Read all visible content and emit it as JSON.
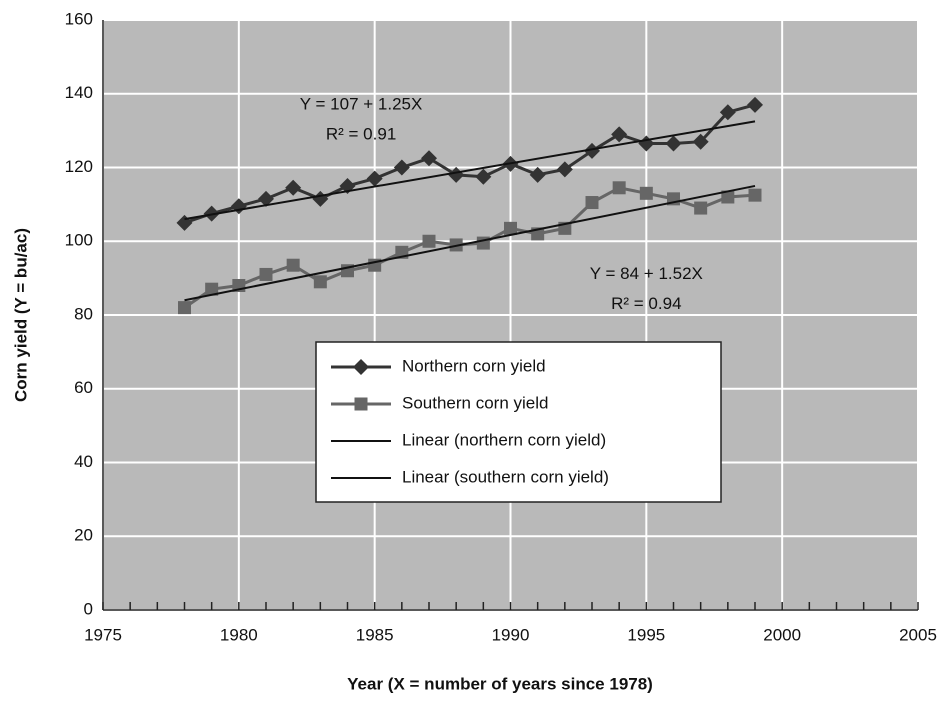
{
  "chart_data": {
    "type": "line",
    "xlabel": "Year (X = number of years since 1978)",
    "ylabel": "Corn yield (Y = bu/ac)",
    "x": [
      1978,
      1979,
      1980,
      1981,
      1982,
      1983,
      1984,
      1985,
      1986,
      1987,
      1988,
      1989,
      1990,
      1991,
      1992,
      1993,
      1994,
      1995,
      1996,
      1997,
      1998,
      1999
    ],
    "series": [
      {
        "name": "Northern corn yield",
        "color": "#333333",
        "marker": "diamond",
        "values": [
          105,
          107.5,
          109.5,
          111.5,
          114.5,
          111.5,
          115,
          117,
          120,
          122.5,
          118,
          117.5,
          121,
          118,
          119.5,
          124.5,
          129,
          126.5,
          126.5,
          127,
          135,
          137
        ]
      },
      {
        "name": "Southern corn yield",
        "color": "#666666",
        "marker": "square",
        "values": [
          82,
          87,
          88,
          91,
          93.5,
          89,
          92,
          93.5,
          97,
          100,
          99,
          99.5,
          103.5,
          102,
          103.5,
          110.5,
          114.5,
          113,
          111.5,
          109,
          112,
          112.5
        ]
      },
      {
        "name": "Linear (northern corn yield)",
        "color": "#111111",
        "x": [
          1978,
          1999
        ],
        "values": [
          106,
          132.5
        ]
      },
      {
        "name": "Linear (southern corn yield)",
        "color": "#111111",
        "x": [
          1978,
          1999
        ],
        "values": [
          84,
          115
        ]
      }
    ],
    "annotations": [
      {
        "lines": [
          "Y = 107 + 1.25X",
          "R² = 0.91"
        ],
        "x": 1984.5,
        "y": 137
      },
      {
        "lines": [
          "Y = 84 + 1.52X",
          "R² = 0.94"
        ],
        "x": 1995,
        "y": 91
      }
    ],
    "xlim": [
      1975,
      2005
    ],
    "xticks": [
      1975,
      1980,
      1985,
      1990,
      1995,
      2000,
      2005
    ],
    "ylim": [
      0,
      160
    ],
    "yticks": [
      0,
      20,
      40,
      60,
      80,
      100,
      120,
      140,
      160
    ],
    "grid": true,
    "legend": "center"
  }
}
